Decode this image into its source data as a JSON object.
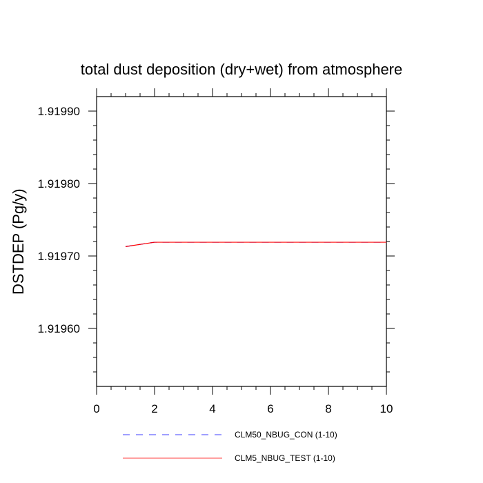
{
  "chart_data": {
    "type": "line",
    "title": "total dust deposition (dry+wet) from atmosphere",
    "xlabel": "",
    "ylabel": "DSTDEP  (Pg/y)",
    "xlim": [
      0,
      10
    ],
    "ylim": [
      1.91952,
      1.91992
    ],
    "xticks": [
      0,
      2,
      4,
      6,
      8,
      10
    ],
    "xtick_labels": [
      "0",
      "2",
      "4",
      "6",
      "8",
      "10"
    ],
    "yticks": [
      1.9196,
      1.9197,
      1.9198,
      1.9199
    ],
    "ytick_labels": [
      "1.91960",
      "1.91970",
      "1.91980",
      "1.91990"
    ],
    "grid": false,
    "legend_position": "bottom",
    "series": [
      {
        "name": "CLM50_NBUG_CON (1-10)",
        "color": "#0000ff",
        "dash": "dashed",
        "x": [
          1,
          2,
          3,
          4,
          5,
          6,
          7,
          8,
          9,
          10
        ],
        "y": [
          1.919713,
          1.919719,
          1.919719,
          1.919719,
          1.919719,
          1.919719,
          1.919719,
          1.919719,
          1.919719,
          1.919719
        ]
      },
      {
        "name": "CLM5_NBUG_TEST (1-10)",
        "color": "#ff0000",
        "dash": "solid",
        "x": [
          1,
          2,
          3,
          4,
          5,
          6,
          7,
          8,
          9,
          10
        ],
        "y": [
          1.919713,
          1.919719,
          1.919719,
          1.919719,
          1.919719,
          1.919719,
          1.919719,
          1.919719,
          1.919719,
          1.919719
        ]
      }
    ]
  }
}
